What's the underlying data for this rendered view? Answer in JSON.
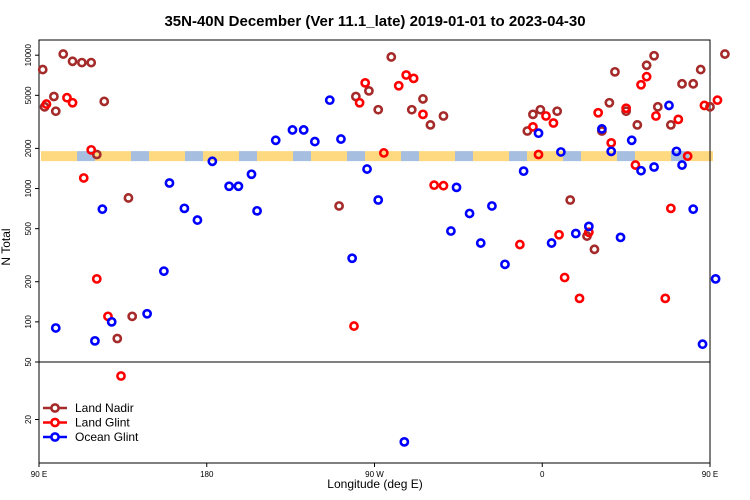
{
  "chart_data": {
    "type": "scatter",
    "title": "35N-40N December (Ver 11.1_late)   2019-01-01 to 2023-04-30",
    "xlabel": "Longitude (deg E)",
    "ylabel": "N Total",
    "xlim": [
      90,
      450
    ],
    "y_scale": "log",
    "upper_ylim": [
      50,
      13000
    ],
    "lower_ylim": [
      10,
      50
    ],
    "x_ticks": [
      {
        "value": 90,
        "label": "90 E"
      },
      {
        "value": 180,
        "label": "180"
      },
      {
        "value": 270,
        "label": "90 W"
      },
      {
        "value": 360,
        "label": "0"
      },
      {
        "value": 450,
        "label": "90 E"
      },
      {
        "value": 540,
        "label": "180"
      }
    ],
    "y_ticks": [
      {
        "value": 10000,
        "label": "10000"
      },
      {
        "value": 5000,
        "label": "5000"
      },
      {
        "value": 2000,
        "label": "2000"
      },
      {
        "value": 1000,
        "label": "1000"
      },
      {
        "value": 500,
        "label": "500"
      },
      {
        "value": 200,
        "label": "200"
      },
      {
        "value": 100,
        "label": "100"
      },
      {
        "value": 50,
        "label": "50"
      },
      {
        "value": 20,
        "label": "20"
      }
    ],
    "band": {
      "y": 1750,
      "colors": [
        "#ffd980",
        "#a6bfe0"
      ]
    },
    "legend_position": "bottom-left",
    "series": [
      {
        "name": "Land Nadir",
        "color": "#a52a2a",
        "points": [
          [
            92,
            7800
          ],
          [
            93,
            4100
          ],
          [
            98,
            4900
          ],
          [
            99,
            3800
          ],
          [
            103,
            10200
          ],
          [
            108,
            9000
          ],
          [
            113,
            8800
          ],
          [
            118,
            8800
          ],
          [
            121,
            1800
          ],
          [
            125,
            4500
          ],
          [
            132,
            75
          ],
          [
            138,
            850
          ],
          [
            140,
            110
          ],
          [
            251,
            740
          ],
          [
            260,
            4900
          ],
          [
            267,
            5400
          ],
          [
            272,
            3900
          ],
          [
            279,
            9700
          ],
          [
            290,
            3900
          ],
          [
            296,
            4700
          ],
          [
            300,
            3000
          ],
          [
            307,
            3500
          ],
          [
            352,
            2700
          ],
          [
            355,
            3600
          ],
          [
            359,
            3900
          ],
          [
            368,
            3800
          ],
          [
            375,
            820
          ],
          [
            384,
            440
          ],
          [
            388,
            350
          ],
          [
            392,
            2700
          ],
          [
            396,
            4400
          ],
          [
            399,
            7500
          ],
          [
            405,
            3800
          ],
          [
            411,
            3000
          ],
          [
            416,
            8400
          ],
          [
            420,
            9900
          ],
          [
            422,
            4100
          ],
          [
            429,
            3000
          ],
          [
            435,
            6100
          ],
          [
            441,
            6100
          ],
          [
            445,
            7800
          ],
          [
            450,
            4100
          ],
          [
            458,
            10200
          ]
        ]
      },
      {
        "name": "Land Glint",
        "color": "#ff0000",
        "points": [
          [
            94,
            4300
          ],
          [
            105,
            4800
          ],
          [
            108,
            4400
          ],
          [
            114,
            1200
          ],
          [
            118,
            1950
          ],
          [
            121,
            210
          ],
          [
            127,
            110
          ],
          [
            134,
            40
          ],
          [
            259,
            93
          ],
          [
            262,
            4400
          ],
          [
            265,
            6200
          ],
          [
            275,
            1850
          ],
          [
            283,
            5900
          ],
          [
            287,
            7100
          ],
          [
            291,
            6700
          ],
          [
            296,
            3600
          ],
          [
            302,
            1060
          ],
          [
            307,
            1050
          ],
          [
            348,
            380
          ],
          [
            355,
            2900
          ],
          [
            358,
            1800
          ],
          [
            362,
            3500
          ],
          [
            366,
            3100
          ],
          [
            369,
            450
          ],
          [
            372,
            215
          ],
          [
            380,
            150
          ],
          [
            385,
            470
          ],
          [
            390,
            3700
          ],
          [
            397,
            2200
          ],
          [
            405,
            4000
          ],
          [
            410,
            1500
          ],
          [
            413,
            6000
          ],
          [
            416,
            6900
          ],
          [
            421,
            3500
          ],
          [
            426,
            150
          ],
          [
            429,
            710
          ],
          [
            433,
            3300
          ],
          [
            438,
            1750
          ],
          [
            447,
            4200
          ],
          [
            454,
            4600
          ]
        ]
      },
      {
        "name": "Ocean Glint",
        "color": "#0000ff",
        "points": [
          [
            99,
            90
          ],
          [
            120,
            72
          ],
          [
            124,
            700
          ],
          [
            129,
            100
          ],
          [
            148,
            115
          ],
          [
            157,
            240
          ],
          [
            160,
            1100
          ],
          [
            168,
            710
          ],
          [
            175,
            580
          ],
          [
            183,
            1600
          ],
          [
            192,
            1040
          ],
          [
            197,
            1040
          ],
          [
            204,
            1280
          ],
          [
            207,
            680
          ],
          [
            217,
            2300
          ],
          [
            226,
            2750
          ],
          [
            232,
            2750
          ],
          [
            238,
            2250
          ],
          [
            246,
            4600
          ],
          [
            252,
            2350
          ],
          [
            258,
            300
          ],
          [
            266,
            1400
          ],
          [
            272,
            820
          ],
          [
            286,
            14
          ],
          [
            311,
            480
          ],
          [
            314,
            1020
          ],
          [
            321,
            650
          ],
          [
            327,
            390
          ],
          [
            333,
            740
          ],
          [
            340,
            270
          ],
          [
            350,
            1350
          ],
          [
            358,
            2600
          ],
          [
            365,
            390
          ],
          [
            370,
            1880
          ],
          [
            378,
            460
          ],
          [
            385,
            520
          ],
          [
            392,
            2800
          ],
          [
            397,
            1900
          ],
          [
            402,
            430
          ],
          [
            408,
            2300
          ],
          [
            413,
            1360
          ],
          [
            420,
            1450
          ],
          [
            428,
            4200
          ],
          [
            432,
            1900
          ],
          [
            435,
            1500
          ],
          [
            441,
            700
          ],
          [
            446,
            68
          ],
          [
            453,
            210
          ]
        ]
      }
    ]
  }
}
